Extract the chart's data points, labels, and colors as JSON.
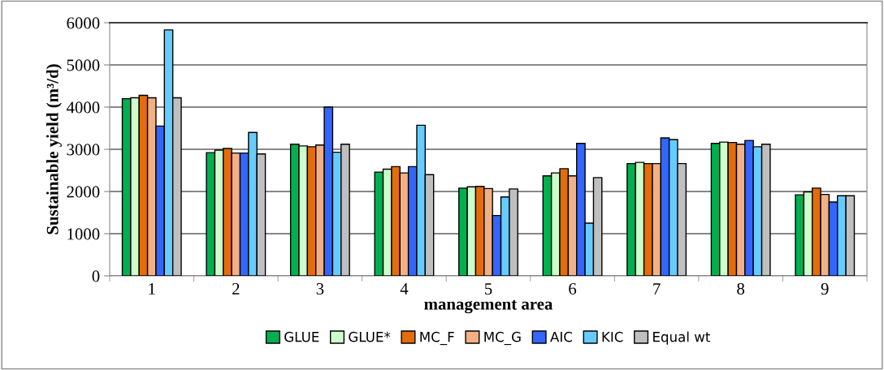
{
  "chart_data": {
    "type": "bar",
    "xlabel": "management area",
    "ylabel": "Sustainable yield (m³/d)",
    "categories": [
      "1",
      "2",
      "3",
      "4",
      "5",
      "6",
      "7",
      "8",
      "9"
    ],
    "ylim": [
      0,
      6000
    ],
    "yticks": [
      0,
      1000,
      2000,
      3000,
      4000,
      5000,
      6000
    ],
    "grid": "y",
    "legend": "bottom",
    "series": [
      {
        "name": "GLUE",
        "color": "#00b050",
        "values": [
          4200,
          2920,
          3120,
          2460,
          2080,
          2370,
          2660,
          3140,
          1920
        ]
      },
      {
        "name": "GLUE*",
        "color": "#ccffcc",
        "values": [
          4220,
          2980,
          3080,
          2530,
          2110,
          2440,
          2690,
          3170,
          1990
        ]
      },
      {
        "name": "MC_F",
        "color": "#e46c0a",
        "values": [
          4280,
          3020,
          3060,
          2590,
          2120,
          2540,
          2660,
          3160,
          2080
        ]
      },
      {
        "name": "MC_G",
        "color": "#f2b084",
        "values": [
          4220,
          2910,
          3100,
          2440,
          2070,
          2370,
          2660,
          3120,
          1930
        ]
      },
      {
        "name": "AIC",
        "color": "#3366ff",
        "values": [
          3550,
          2910,
          4000,
          2590,
          1430,
          3140,
          3270,
          3210,
          1750
        ]
      },
      {
        "name": "KIC",
        "color": "#66ccff",
        "values": [
          5830,
          3400,
          2930,
          3570,
          1870,
          1250,
          3230,
          3060,
          1900
        ]
      },
      {
        "name": "Equal wt",
        "color": "#bfbfbf",
        "values": [
          4220,
          2890,
          3120,
          2400,
          2060,
          2330,
          2660,
          3120,
          1900
        ]
      }
    ]
  }
}
